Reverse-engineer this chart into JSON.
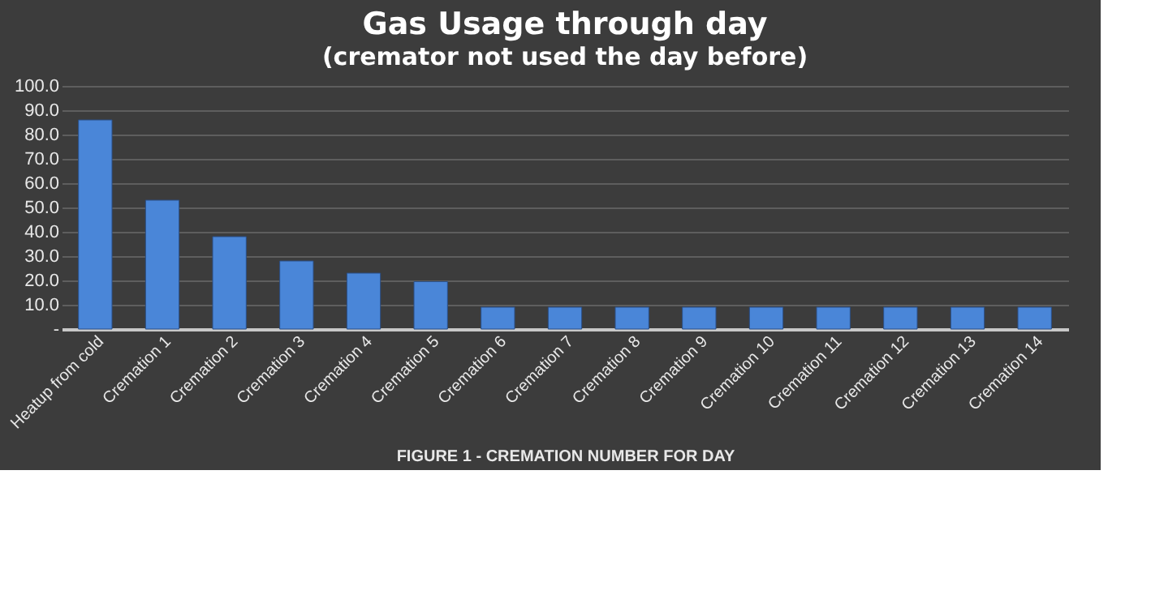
{
  "chart_data": {
    "type": "bar",
    "title": "Gas Usage through day",
    "subtitle": "(cremator not used the day before)",
    "xlabel": "FIGURE 1 - CREMATION NUMBER FOR DAY",
    "categories": [
      "Heatup from cold",
      "Cremation 1",
      "Cremation 2",
      "Cremation 3",
      "Cremation 4",
      "Cremation 5",
      "Cremation 6",
      "Cremation 7",
      "Cremation 8",
      "Cremation 9",
      "Cremation 10",
      "Cremation 11",
      "Cremation 12",
      "Cremation 13",
      "Cremation 14"
    ],
    "values": [
      86,
      53,
      38,
      28,
      23,
      19.5,
      9,
      9,
      9,
      9,
      9,
      9,
      9,
      9,
      9
    ],
    "color": "#4a86d8",
    "ylim": [
      0,
      100
    ],
    "yticks": [
      {
        "value": 0,
        "label": "-"
      },
      {
        "value": 10,
        "label": "10.0"
      },
      {
        "value": 20,
        "label": "20.0"
      },
      {
        "value": 30,
        "label": "30.0"
      },
      {
        "value": 40,
        "label": "40.0"
      },
      {
        "value": 50,
        "label": "50.0"
      },
      {
        "value": 60,
        "label": "60.0"
      },
      {
        "value": 70,
        "label": "70.0"
      },
      {
        "value": 80,
        "label": "80.0"
      },
      {
        "value": 90,
        "label": "90.0"
      },
      {
        "value": 100,
        "label": "100.0"
      }
    ],
    "grid": "y"
  }
}
